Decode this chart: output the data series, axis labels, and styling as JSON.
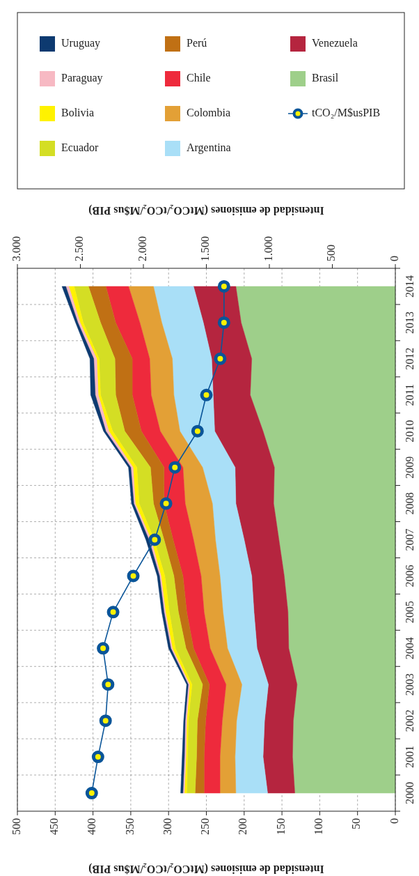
{
  "chart_data": {
    "type": "area",
    "stacked": true,
    "orientation": "horizontal",
    "categories": [
      "2014",
      "2013",
      "2012",
      "2011",
      "2010",
      "2009",
      "2008",
      "2007",
      "2006",
      "2005",
      "2004",
      "2003",
      "2002",
      "2001",
      "2000"
    ],
    "xlabel": "Intensidad de emisiones (MtCO₂/tCO₂/M$us PIB)",
    "x2label": "Intensidad de emisiones (MtCO₂/tCO₂/M$us PIB)",
    "xlim": [
      500,
      0
    ],
    "xticks": [
      500,
      450,
      400,
      350,
      300,
      250,
      200,
      150,
      100,
      50,
      0
    ],
    "x2lim": [
      3000,
      0
    ],
    "x2ticks": [
      {
        "value": 3000,
        "label": "3.000"
      },
      {
        "value": 2500,
        "label": "2.500"
      },
      {
        "value": 2000,
        "label": "2.000"
      },
      {
        "value": 1500,
        "label": "1.500"
      },
      {
        "value": 1000,
        "label": "1.000"
      },
      500,
      0
    ],
    "grid": true,
    "legend": "top",
    "series": [
      {
        "name": "Brasil",
        "color": "#9ecf8a",
        "values": [
          211,
          204,
          190,
          192,
          175,
          160,
          161,
          154,
          147,
          142,
          141,
          130,
          135,
          136,
          133
        ]
      },
      {
        "name": "Venezuela",
        "color": "#b5253f",
        "values": [
          56,
          50,
          53,
          49,
          64,
          52,
          50,
          46,
          43,
          45,
          42,
          38,
          38,
          39,
          36
        ]
      },
      {
        "name": "Argentina",
        "color": "#a9dff7",
        "values": [
          53,
          55,
          52,
          52,
          46,
          43,
          31,
          38,
          42,
          41,
          39,
          35,
          37,
          37,
          42
        ]
      },
      {
        "name": "Colombia",
        "color": "#e3a036",
        "values": [
          33,
          29,
          30,
          30,
          26,
          26,
          36,
          29,
          25,
          25,
          23,
          21,
          19,
          20,
          21
        ]
      },
      {
        "name": "Chile",
        "color": "#ee2a3c",
        "values": [
          30,
          32,
          23,
          25,
          25,
          25,
          28,
          27,
          24,
          23,
          22,
          22,
          22,
          21,
          21
        ]
      },
      {
        "name": "Perú",
        "color": "#c07014",
        "values": [
          23,
          20,
          23,
          22,
          22,
          18,
          14,
          12,
          12,
          11,
          10,
          9,
          11,
          10,
          12
        ]
      },
      {
        "name": "Ecuador",
        "color": "#d4de24",
        "values": [
          19,
          23,
          21,
          20,
          16,
          18,
          19,
          13,
          12,
          12,
          14,
          14,
          12,
          12,
          11
        ]
      },
      {
        "name": "Bolivia",
        "color": "#fff200",
        "values": [
          7,
          4,
          3,
          3,
          5,
          5,
          5,
          4,
          5,
          5,
          4,
          3,
          2,
          2,
          3
        ]
      },
      {
        "name": "Paraguay",
        "color": "#f7b9c3",
        "values": [
          4,
          3,
          4,
          4,
          4,
          3,
          2,
          3,
          2,
          2,
          2,
          2,
          2,
          2,
          2
        ]
      },
      {
        "name": "Uruguay",
        "color": "#0d3a70",
        "values": [
          5,
          3,
          5,
          6,
          3,
          3,
          3,
          4,
          3,
          3,
          3,
          2,
          2,
          3,
          3
        ]
      },
      {
        "name": "tCO₂/M$usPIB",
        "type": "line",
        "axis": "x2",
        "marker": "circle",
        "color": "#0a5599",
        "values": [
          1360,
          1360,
          1390,
          1500,
          1570,
          1750,
          1820,
          1910,
          2080,
          2240,
          2320,
          2280,
          2300,
          2360,
          2410
        ]
      }
    ]
  }
}
